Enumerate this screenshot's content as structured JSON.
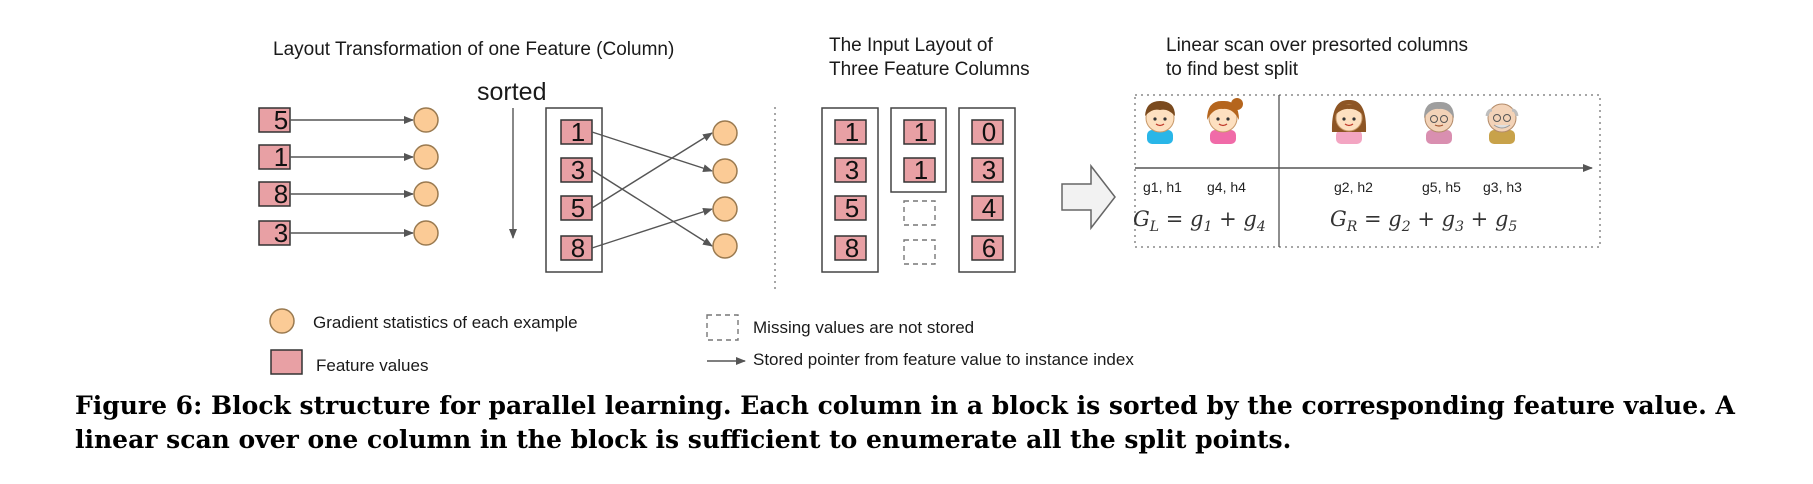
{
  "left_panel": {
    "title": "Layout Transformation of one Feature (Column)",
    "sorted_label": "sorted",
    "unsorted_values": [
      "5",
      "1",
      "8",
      "3"
    ],
    "sorted_values": [
      "1",
      "3",
      "5",
      "8"
    ]
  },
  "middle_panel": {
    "title_line1": "The Input Layout of",
    "title_line2": "Three Feature Columns",
    "col1": [
      "1",
      "3",
      "5",
      "8"
    ],
    "col2": [
      "1",
      "1"
    ],
    "col3": [
      "0",
      "3",
      "4",
      "6"
    ]
  },
  "right_panel": {
    "title_line1": "Linear scan over presorted columns",
    "title_line2": "to find best split",
    "labels": [
      "g1, h1",
      "g4, h4",
      "g2, h2",
      "g5, h5",
      "g3, h3"
    ],
    "gl_formula": "G_L = g_1 + g_4",
    "gr_formula": "G_R = g_2 + g_3 + g_5"
  },
  "legend": {
    "gradient": "Gradient statistics of each example",
    "feature": "Feature values",
    "missing": "Missing values are not stored",
    "pointer": "Stored pointer from feature value to instance index"
  },
  "caption": {
    "text": "Figure 6: Block structure for parallel learning. Each column in a block is sorted by the corresponding feature value. A linear scan over one column in the block is sufficient to enumerate all the split points."
  },
  "colors": {
    "feature_fill": "#e8a0a4",
    "gradient_fill": "#fbcb96"
  },
  "icons": [
    "boy-icon",
    "girl-icon",
    "woman-icon",
    "grandma-icon",
    "grandpa-icon"
  ]
}
